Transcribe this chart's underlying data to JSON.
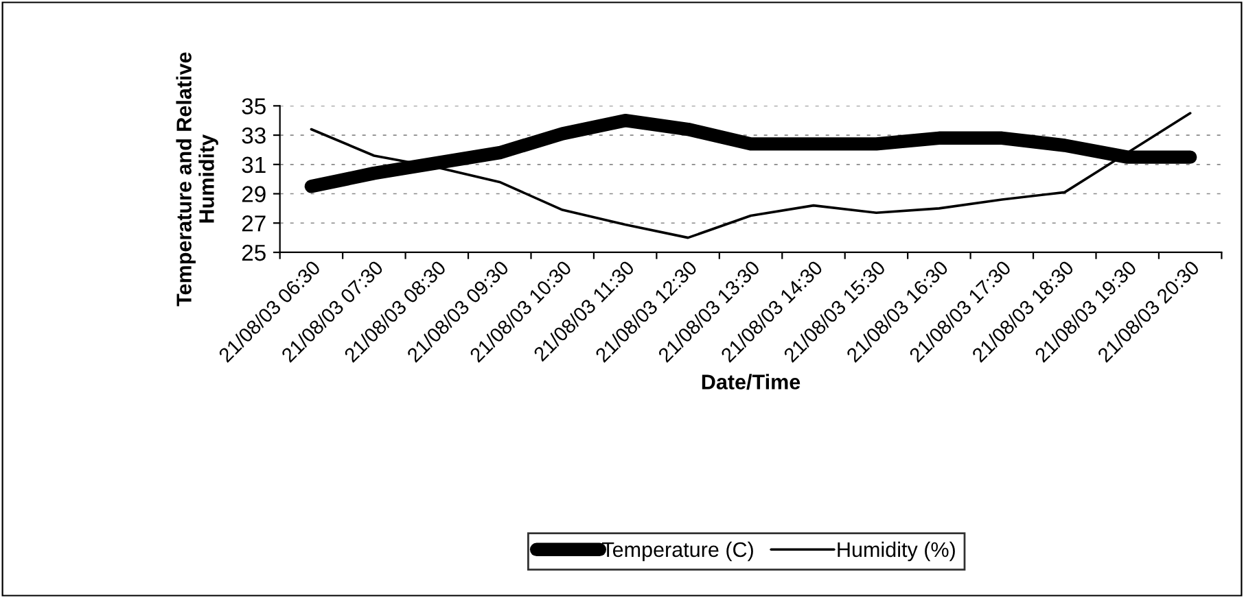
{
  "chart_data": {
    "type": "line",
    "xlabel": "Date/Time",
    "ylabel": "Temperature and Relative\nHumidity",
    "categories": [
      "21/08/03 06:30",
      "21/08/03 07:30",
      "21/08/03 08:30",
      "21/08/03 09:30",
      "21/08/03 10:30",
      "21/08/03 11:30",
      "21/08/03 12:30",
      "21/08/03 13:30",
      "21/08/03 14:30",
      "21/08/03 15:30",
      "21/08/03 16:30",
      "21/08/03 17:30",
      "21/08/03 18:30",
      "21/08/03 19:30",
      "21/08/03 20:30"
    ],
    "series": [
      {
        "name": "Temperature (C)",
        "color": "#000000",
        "values": [
          29.5,
          30.4,
          31.1,
          31.8,
          33.1,
          34.0,
          33.4,
          32.4,
          32.4,
          32.4,
          32.8,
          32.8,
          32.3,
          31.5,
          31.5
        ]
      },
      {
        "name": "Humidity (%)",
        "color": "#000000",
        "values": [
          33.4,
          31.6,
          30.8,
          29.8,
          27.9,
          26.9,
          26.0,
          27.5,
          28.2,
          27.7,
          28.0,
          28.6,
          29.1,
          31.8,
          34.5
        ]
      }
    ],
    "ylim": [
      25,
      35
    ],
    "yticks": [
      25,
      27,
      29,
      31,
      33,
      35
    ],
    "grid": "y",
    "legend": "bottom",
    "marker": "none",
    "line_style": "solid"
  }
}
